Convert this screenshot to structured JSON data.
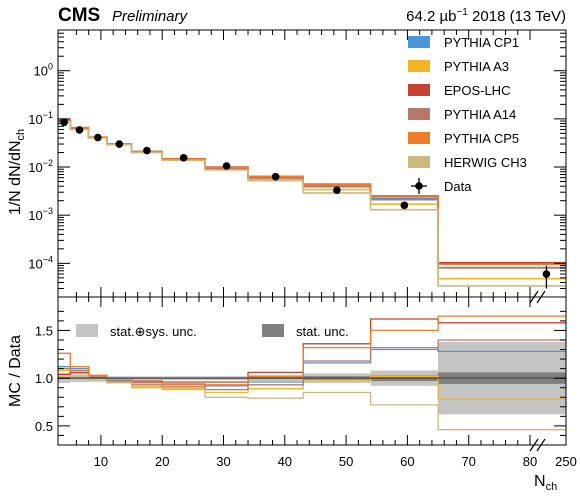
{
  "header": {
    "experiment": "CMS",
    "status": "Preliminary",
    "luminosity": "64.2 µb",
    "lumi_exponent": "−1",
    "run_info": " 2018 (13 TeV)"
  },
  "chart_data": [
    {
      "type": "histogram",
      "panel": "main",
      "ylabel": "1/N dN/dN",
      "ylabel_subscript": "ch",
      "yscale": "log",
      "ylim": [
        2e-05,
        7
      ],
      "xlim": [
        3,
        250
      ],
      "y_tick_labels": [
        {
          "value": 1,
          "mantissa": "10",
          "exponent": "0"
        },
        {
          "value": 0.1,
          "mantissa": "10",
          "exponent": "−1"
        },
        {
          "value": 0.01,
          "mantissa": "10",
          "exponent": "−2"
        },
        {
          "value": 0.001,
          "mantissa": "10",
          "exponent": "−3"
        },
        {
          "value": 0.0001,
          "mantissa": "10",
          "exponent": "−4"
        }
      ],
      "bin_edges": [
        3,
        5,
        8,
        11,
        15,
        20,
        27,
        34,
        43,
        54,
        65,
        250
      ],
      "series": [
        {
          "name": "PYTHIA CP1",
          "color": "#4c97d8",
          "values": [
            0.095,
            0.065,
            0.041,
            0.03,
            0.021,
            0.0145,
            0.0095,
            0.006,
            0.004,
            0.0022,
            8.2e-05
          ]
        },
        {
          "name": "PYTHIA A3",
          "color": "#f5b425",
          "values": [
            0.092,
            0.062,
            0.041,
            0.029,
            0.02,
            0.014,
            0.009,
            0.0056,
            0.0034,
            0.0017,
            4.8e-05
          ]
        },
        {
          "name": "EPOS-LHC",
          "color": "#c8432f",
          "values": [
            0.09,
            0.063,
            0.041,
            0.03,
            0.021,
            0.0148,
            0.01,
            0.0064,
            0.0044,
            0.0025,
            0.000103
          ]
        },
        {
          "name": "PYTHIA A14",
          "color": "#b5796b",
          "values": [
            0.094,
            0.064,
            0.041,
            0.03,
            0.0205,
            0.0142,
            0.0093,
            0.0059,
            0.0039,
            0.0021,
            8e-05
          ]
        },
        {
          "name": "PYTHIA CP5",
          "color": "#f07c2a",
          "values": [
            0.096,
            0.066,
            0.042,
            0.03,
            0.021,
            0.0147,
            0.0098,
            0.0063,
            0.0043,
            0.0024,
            9.6e-05
          ]
        },
        {
          "name": "HERWIG CH3",
          "color": "#cdb97e",
          "values": [
            0.087,
            0.06,
            0.04,
            0.029,
            0.02,
            0.0138,
            0.0087,
            0.0052,
            0.0029,
            0.0013,
            3.4e-05
          ]
        }
      ],
      "data": {
        "name": "Data",
        "color": "#000000",
        "x": [
          4,
          6.5,
          9.5,
          13,
          17.5,
          23.5,
          30.5,
          38.5,
          48.5,
          59.5,
          157.5
        ],
        "y": [
          0.085,
          0.059,
          0.041,
          0.03,
          0.022,
          0.0155,
          0.0105,
          0.0063,
          0.0033,
          0.0016,
          6e-05
        ],
        "yerr_low": [
          0.004,
          0.003,
          0.002,
          0.0015,
          0.001,
          0.0007,
          0.0005,
          0.0004,
          0.0002,
          0.0001,
          3e-05
        ],
        "yerr_high": [
          0.004,
          0.003,
          0.002,
          0.0015,
          0.001,
          0.0007,
          0.0005,
          0.0004,
          0.0002,
          0.0001,
          3e-05
        ]
      },
      "legend": "top-right"
    },
    {
      "type": "histogram",
      "panel": "ratio",
      "ylabel": "MC / Data",
      "xlabel": "N",
      "xlabel_subscript": "ch",
      "ylim": [
        0.3,
        1.85
      ],
      "y_ticks": [
        0.5,
        1.0,
        1.5
      ],
      "y_tick_labels": [
        "0.5",
        "1.0",
        "1.5"
      ],
      "x_ticks": [
        10,
        20,
        30,
        40,
        50,
        60,
        70,
        80,
        250
      ],
      "x_tick_labels": [
        "10",
        "20",
        "30",
        "40",
        "50",
        "60",
        "70",
        "80",
        "250"
      ],
      "axis_break_after": 80,
      "bin_edges": [
        3,
        5,
        8,
        11,
        15,
        20,
        27,
        34,
        43,
        54,
        65,
        250
      ],
      "series": [
        {
          "name": "PYTHIA CP1",
          "color": "#4c97d8",
          "values": [
            1.12,
            1.1,
            1.0,
            0.98,
            0.95,
            0.94,
            0.92,
            0.96,
            1.16,
            1.32,
            1.28
          ]
        },
        {
          "name": "PYTHIA A3",
          "color": "#f5b425",
          "values": [
            1.08,
            1.05,
            1.0,
            0.96,
            0.91,
            0.89,
            0.85,
            0.89,
            0.98,
            1.02,
            0.78
          ]
        },
        {
          "name": "EPOS-LHC",
          "color": "#c8432f",
          "values": [
            1.04,
            1.06,
            1.01,
            1.0,
            0.97,
            0.96,
            0.96,
            1.06,
            1.36,
            1.62,
            1.58
          ]
        },
        {
          "name": "PYTHIA A14",
          "color": "#b5796b",
          "values": [
            1.1,
            1.08,
            1.0,
            0.97,
            0.93,
            0.91,
            0.88,
            0.93,
            1.18,
            1.3,
            1.4
          ]
        },
        {
          "name": "PYTHIA CP5",
          "color": "#f07c2a",
          "values": [
            1.26,
            1.12,
            1.03,
            1.0,
            0.96,
            0.93,
            0.93,
            1.02,
            1.32,
            1.5,
            1.65
          ]
        },
        {
          "name": "HERWIG CH3",
          "color": "#cdb97e",
          "values": [
            1.02,
            1.02,
            0.97,
            0.95,
            0.9,
            0.88,
            0.8,
            0.79,
            0.85,
            0.72,
            0.46
          ]
        }
      ],
      "bands": [
        {
          "name": "stat.⊕sys. unc.",
          "color": "#c4c4c4",
          "low": [
            0.95,
            0.96,
            0.97,
            0.98,
            0.98,
            0.98,
            0.98,
            0.97,
            0.95,
            0.92,
            0.62
          ],
          "high": [
            1.05,
            1.04,
            1.03,
            1.02,
            1.02,
            1.02,
            1.02,
            1.03,
            1.05,
            1.08,
            1.38
          ]
        },
        {
          "name": "stat. unc.",
          "color": "#7f7f7f",
          "low": [
            0.995,
            0.995,
            0.995,
            0.995,
            0.995,
            0.995,
            0.995,
            0.99,
            0.98,
            0.97,
            0.94
          ],
          "high": [
            1.005,
            1.005,
            1.005,
            1.005,
            1.005,
            1.005,
            1.005,
            1.01,
            1.02,
            1.03,
            1.06
          ]
        }
      ],
      "legend": "top"
    }
  ]
}
